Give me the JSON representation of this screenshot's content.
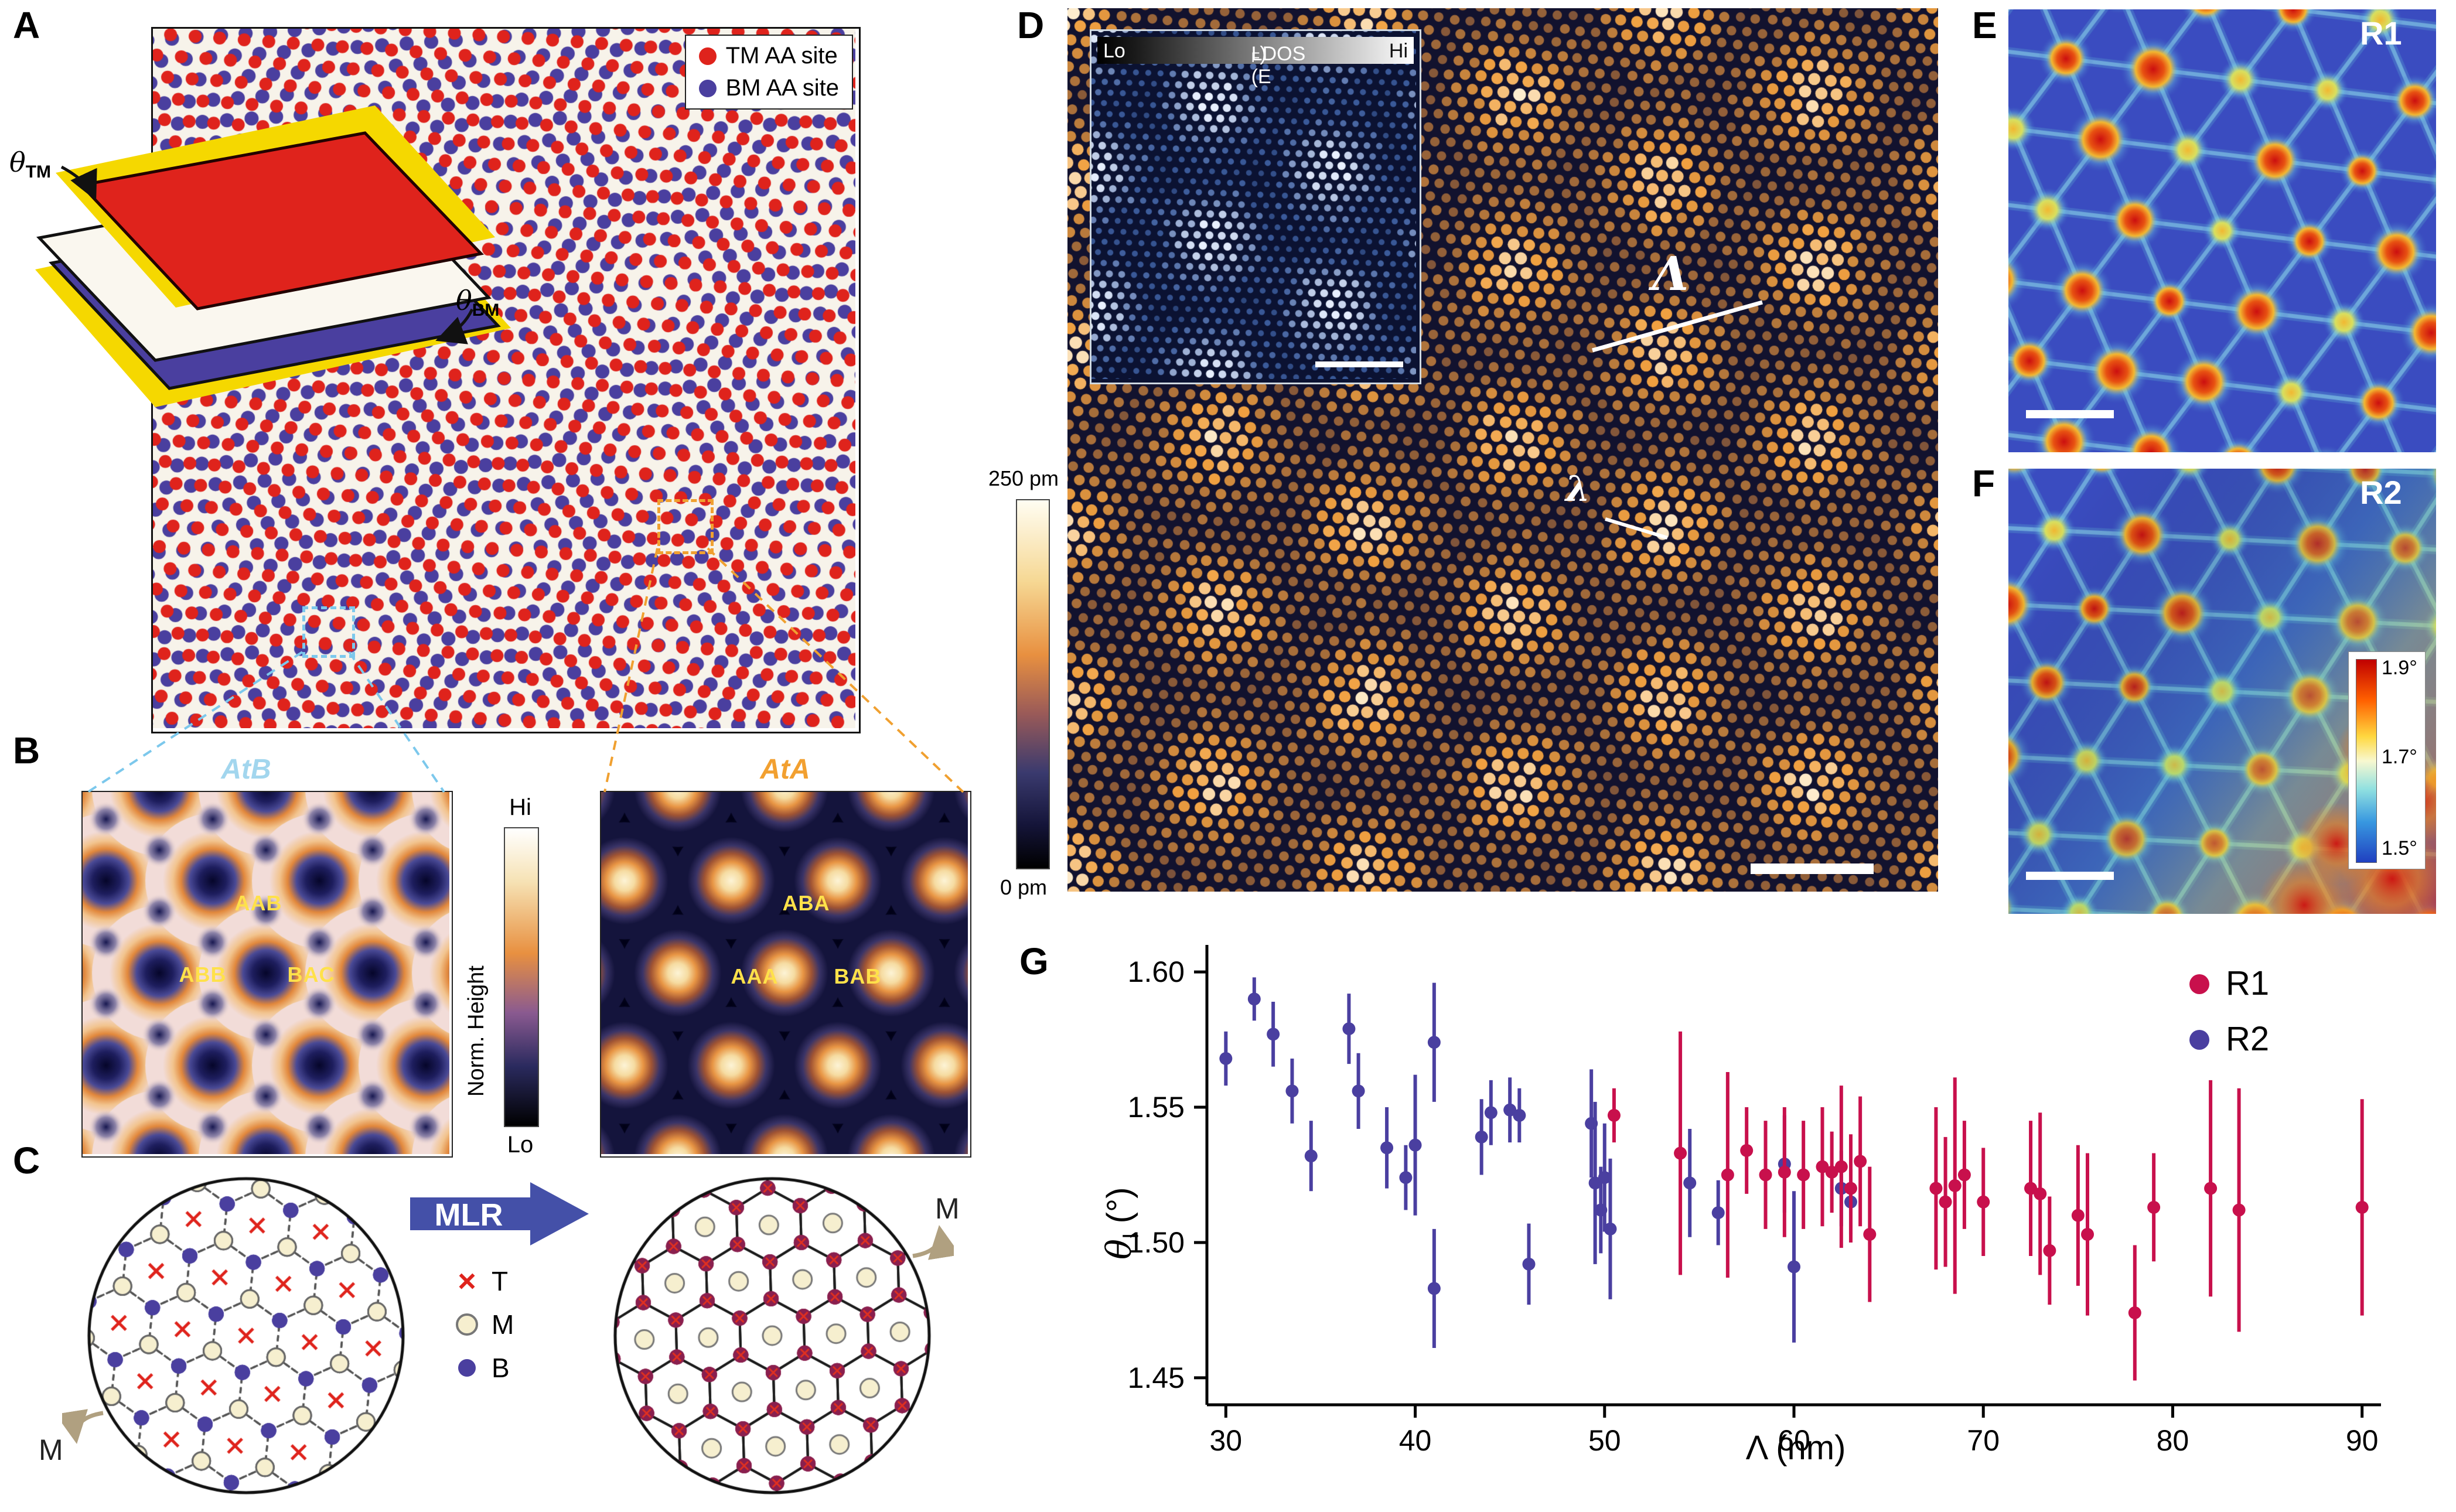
{
  "colors": {
    "tm_red": "#df231c",
    "bm_blue": "#4a3f9f",
    "r1": "#c8104c",
    "r2": "#4a3fa0",
    "mlr_blue": "#4450a8",
    "atb_title": "#a2d6ee",
    "ata_title": "#f2a030",
    "stack_label_yellow": "#ffe14a",
    "maroon": "#8a1f4e",
    "sheet_yellow": "#f5d800"
  },
  "panelA": {
    "label": "A",
    "legend": [
      {
        "label": "TM AA site",
        "color": "#df231c"
      },
      {
        "label": "BM AA site",
        "color": "#4a3f9f"
      }
    ],
    "theta_tm": {
      "base": "θ",
      "sub": "TM"
    },
    "theta_bm": {
      "base": "θ",
      "sub": "BM"
    }
  },
  "panelB": {
    "label": "B",
    "left_title": "AtB",
    "right_title": "AtA",
    "colorbar": {
      "top": "Hi",
      "bottom": "Lo",
      "axis": "Norm. Height"
    },
    "left_labels": [
      "AAB",
      "ABB",
      "BAC"
    ],
    "right_labels": [
      "ABA",
      "AAA",
      "BAB"
    ]
  },
  "panelC": {
    "label": "C",
    "arrow_label": "MLR",
    "legend": [
      {
        "symbol": "cross",
        "label": "T"
      },
      {
        "symbol": "open-circle",
        "label": "M"
      },
      {
        "symbol": "filled-circle",
        "label": "B"
      }
    ],
    "rotation_label_left": "M",
    "rotation_label_right": "M"
  },
  "panelD": {
    "label": "D",
    "colorbar_top": "250 pm",
    "colorbar_bottom": "0 pm",
    "inset": {
      "lo": "Lo",
      "title_base": "LDOS (E",
      "title_sub": "F",
      "title_end": ")",
      "hi": "Hi"
    },
    "moire_wavelength_label": "Λ",
    "atomic_wavelength_label": "λ"
  },
  "panelE": {
    "label": "E",
    "tag": "R1"
  },
  "panelF": {
    "label": "F",
    "tag": "R2",
    "colorbar_ticks": [
      "1.9°",
      "1.7°",
      "1.5°"
    ]
  },
  "panelG": {
    "label": "G",
    "ylabel": {
      "base": "θ",
      "sub": "I",
      "unit": " (°)"
    },
    "xlabel": "Λ (nm)",
    "legend": [
      {
        "label": "R1",
        "color": "#c8104c"
      },
      {
        "label": "R2",
        "color": "#4a3fa0"
      }
    ]
  },
  "chart_data": {
    "type": "scatter",
    "title": "",
    "xlabel": "Λ (nm)",
    "ylabel": "θI (°)",
    "xlim": [
      29,
      91
    ],
    "ylim": [
      1.44,
      1.61
    ],
    "xticks": [
      30,
      40,
      50,
      60,
      70,
      80,
      90
    ],
    "yticks": [
      1.45,
      1.5,
      1.55,
      1.6
    ],
    "ytick_labels": [
      "1.45",
      "1.50",
      "1.55",
      "1.60"
    ],
    "grid": false,
    "legend_position": "top-right",
    "point_format": "[lambda_nm, theta_deg, theta_err_deg]",
    "series": [
      {
        "name": "R1",
        "color": "#c8104c",
        "points": [
          [
            50.5,
            1.547,
            0.01
          ],
          [
            54,
            1.533,
            0.045
          ],
          [
            56.5,
            1.525,
            0.038
          ],
          [
            57.5,
            1.534,
            0.016
          ],
          [
            58.5,
            1.525,
            0.02
          ],
          [
            59.5,
            1.526,
            0.024
          ],
          [
            60.5,
            1.525,
            0.02
          ],
          [
            61.5,
            1.528,
            0.022
          ],
          [
            62,
            1.526,
            0.015
          ],
          [
            62.5,
            1.528,
            0.03
          ],
          [
            63,
            1.52,
            0.02
          ],
          [
            63.5,
            1.53,
            0.024
          ],
          [
            64,
            1.503,
            0.025
          ],
          [
            67.5,
            1.52,
            0.03
          ],
          [
            68,
            1.515,
            0.024
          ],
          [
            68.5,
            1.521,
            0.04
          ],
          [
            69,
            1.525,
            0.02
          ],
          [
            70,
            1.515,
            0.02
          ],
          [
            72.5,
            1.52,
            0.025
          ],
          [
            73,
            1.518,
            0.03
          ],
          [
            73.5,
            1.497,
            0.02
          ],
          [
            75,
            1.51,
            0.026
          ],
          [
            75.5,
            1.503,
            0.03
          ],
          [
            78,
            1.474,
            0.025
          ],
          [
            79,
            1.513,
            0.02
          ],
          [
            82,
            1.52,
            0.04
          ],
          [
            83.5,
            1.512,
            0.045
          ],
          [
            90,
            1.513,
            0.04
          ]
        ]
      },
      {
        "name": "R2",
        "color": "#4a3fa0",
        "points": [
          [
            30,
            1.568,
            0.01
          ],
          [
            31.5,
            1.59,
            0.008
          ],
          [
            32.5,
            1.577,
            0.012
          ],
          [
            33.5,
            1.556,
            0.012
          ],
          [
            34.5,
            1.532,
            0.013
          ],
          [
            36.5,
            1.579,
            0.013
          ],
          [
            37,
            1.556,
            0.014
          ],
          [
            38.5,
            1.535,
            0.015
          ],
          [
            39.5,
            1.524,
            0.012
          ],
          [
            40,
            1.536,
            0.026
          ],
          [
            41,
            1.574,
            0.022
          ],
          [
            41,
            1.483,
            0.022
          ],
          [
            43.5,
            1.539,
            0.014
          ],
          [
            44,
            1.548,
            0.012
          ],
          [
            45,
            1.549,
            0.012
          ],
          [
            45.5,
            1.547,
            0.01
          ],
          [
            46,
            1.492,
            0.015
          ],
          [
            49.3,
            1.544,
            0.02
          ],
          [
            49.5,
            1.522,
            0.03
          ],
          [
            49.8,
            1.512,
            0.016
          ],
          [
            50,
            1.524,
            0.02
          ],
          [
            50.3,
            1.505,
            0.026
          ],
          [
            54.5,
            1.522,
            0.02
          ],
          [
            56,
            1.511,
            0.012
          ],
          [
            59.5,
            1.529,
            0.018
          ],
          [
            60,
            1.491,
            0.028
          ],
          [
            62.5,
            1.52,
            0.014
          ],
          [
            63,
            1.515,
            0.012
          ]
        ]
      }
    ]
  }
}
